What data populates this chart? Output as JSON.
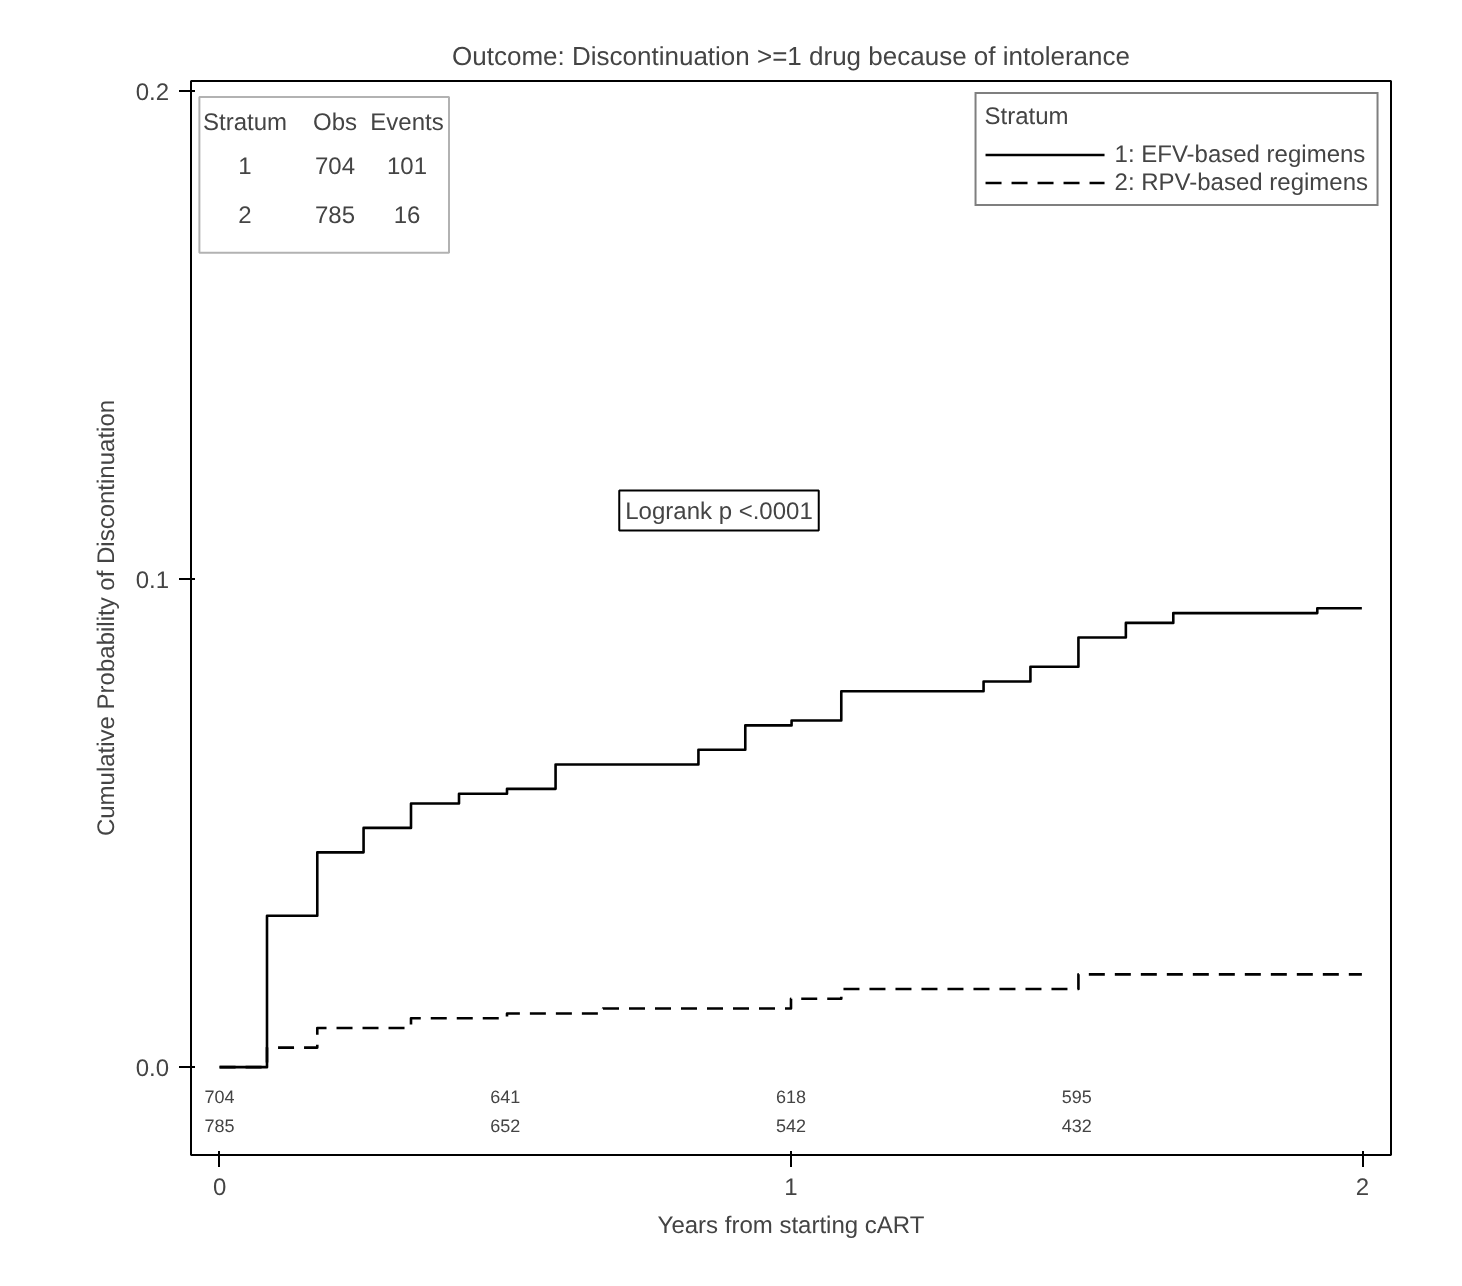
{
  "chart_data": {
    "type": "step",
    "title": "Outcome: Discontinuation >=1 drug because of intolerance",
    "xlabel": "Years from starting cART",
    "ylabel": "Cumulative Probability of Discontinuation",
    "legend_title": "Stratum",
    "series": [
      {
        "name": "1: EFV-based regimens",
        "color": "#000000",
        "line_style": "solid",
        "x": [
          0,
          0.083,
          0.171,
          0.252,
          0.335,
          0.419,
          0.503,
          0.588,
          0.838,
          0.92,
          1.001,
          1.088,
          1.337,
          1.419,
          1.503,
          1.586,
          1.669,
          1.921,
          1.999
        ],
        "values": [
          0,
          0.031,
          0.044,
          0.049,
          0.054,
          0.056,
          0.057,
          0.062,
          0.065,
          0.07,
          0.071,
          0.077,
          0.079,
          0.082,
          0.088,
          0.091,
          0.093,
          0.094,
          0.094
        ]
      },
      {
        "name": "2: RPV-based regimens",
        "color": "#000000",
        "line_style": "dashed",
        "x": [
          0,
          0.083,
          0.171,
          0.335,
          0.503,
          0.671,
          1.0,
          1.088,
          1.503,
          1.999
        ],
        "values": [
          0,
          0.004,
          0.008,
          0.01,
          0.011,
          0.012,
          0.014,
          0.016,
          0.019,
          0.019
        ]
      }
    ],
    "annotations": [
      "Stratum Obs Events",
      "1 704 101",
      "2 785 16",
      "Logrank p <.0001",
      "1",
      "2",
      "704 641 618 595",
      "785 652 542 432"
    ],
    "xlim": [
      -0.05,
      2.05
    ],
    "ylim": [
      -0.018,
      0.202
    ],
    "xticks": [
      0,
      1,
      2
    ],
    "yticks": [
      {
        "value": 0,
        "label": "0.0"
      },
      {
        "value": 0.1,
        "label": "0.1"
      },
      {
        "value": 0.2,
        "label": "0.2"
      }
    ],
    "grid": false,
    "legend": "top right",
    "marker": "none"
  }
}
